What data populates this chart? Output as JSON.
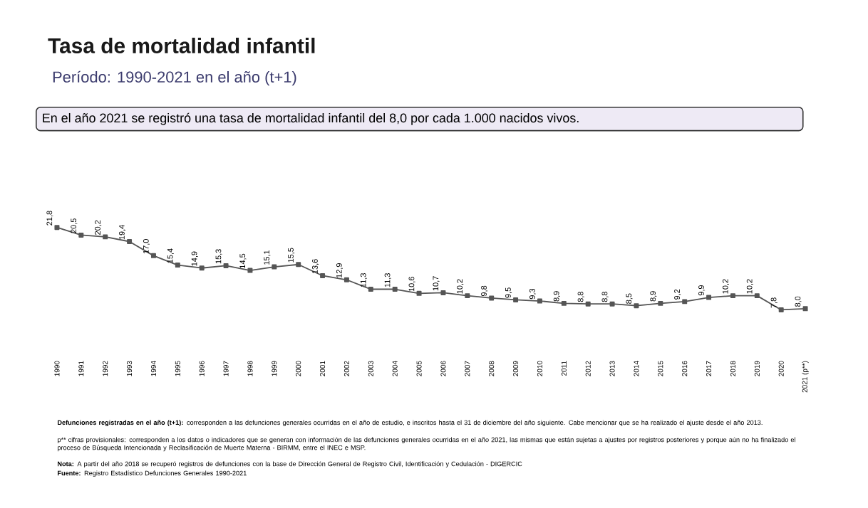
{
  "chart_data": {
    "type": "line",
    "title": "Tasa de mortalidad infantil",
    "subtitle": "Período: 1990-2021 en el año (t+1)",
    "categories": [
      "1990",
      "1991",
      "1992",
      "1993",
      "1994",
      "1995",
      "1996",
      "1997",
      "1998",
      "1999",
      "2000",
      "2001",
      "2002",
      "2003",
      "2004",
      "2005",
      "2006",
      "2007",
      "2008",
      "2009",
      "2010",
      "2011",
      "2012",
      "2013",
      "2014",
      "2015",
      "2016",
      "2017",
      "2018",
      "2019",
      "2020",
      "2021 (p**)"
    ],
    "series": [
      {
        "color": "#555555",
        "values": [
          21.8,
          20.5,
          20.2,
          19.4,
          17.0,
          15.4,
          14.9,
          15.3,
          14.5,
          15.1,
          15.5,
          13.6,
          12.9,
          11.3,
          11.3,
          10.6,
          10.7,
          10.2,
          9.8,
          9.5,
          9.3,
          8.9,
          8.8,
          8.8,
          8.5,
          8.9,
          9.2,
          9.9,
          10.2,
          10.2,
          7.8,
          8.0
        ],
        "value_labels": [
          "21,8",
          "20,5",
          "20,2",
          "19,4",
          "17,0",
          "15,4",
          "14,9",
          "15,3",
          "14,5",
          "15,1",
          "15,5",
          "13,6",
          "12,9",
          "11,3",
          "11,3",
          "10,6",
          "10,7",
          "10,2",
          "9,8",
          "9,5",
          "9,3",
          "8,9",
          "8,8",
          "8,8",
          "8,5",
          "8,9",
          "9,2",
          "9,9",
          "10,2",
          "10,2",
          "7,8",
          "8,0"
        ]
      }
    ],
    "marker": "square",
    "line_style": "solid",
    "annotations": [
      "En el año 2021 se registró una tasa de mortalidad infantil del 8,0 por cada 1.000 nacidos vivos.",
      "**Defunciones registradas en el año (t+1):** corresponden a las defunciones generales ocurridas en el año de estudio, e inscritos hasta el 31 de diciembre del año siguiente. Cabe mencionar que se ha realizado el ajuste desde el año 2013.",
      "p** cifras provisionales: corresponden a los datos o indicadores que se generan con información de las defunciones generales ocurridas en el año 2021, las mismas que están sujetas a ajustes por registros posteriores y porque aún no ha finalizado el proceso de Búsqueda Intencionada y Reclasificación de Muerte Materna - BIRMM, entre el INEC e MSP.",
      "**Nota:** A partir del año 2018 se recuperó registros de defunciones con la base de Dirección General de Registro Civil, Identificación y Cedulación - DIGERCIC",
      "**Fuente:** Registro Estadístico Defunciones Generales 1990-2021"
    ]
  }
}
